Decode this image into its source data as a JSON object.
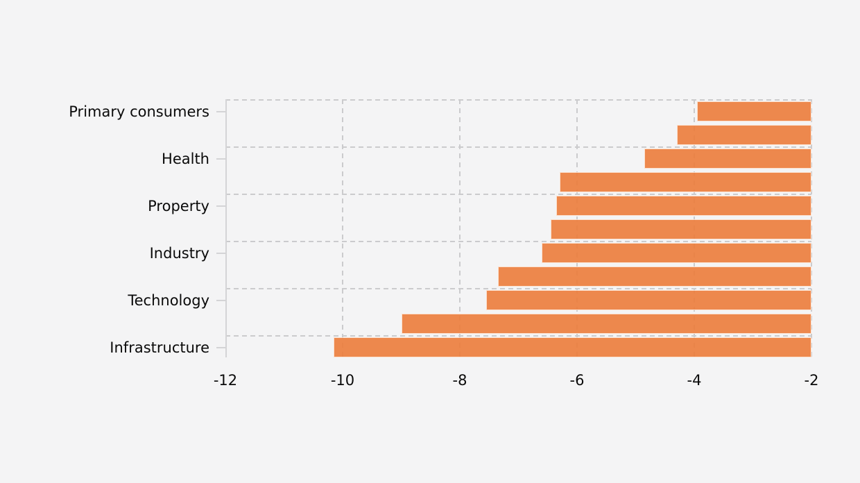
{
  "chart_data": {
    "type": "bar",
    "orientation": "horizontal",
    "title": "",
    "categories": [
      "Primary consumers",
      "",
      "Health",
      "",
      "Property",
      "",
      "Industry",
      "",
      "Technology",
      "",
      "Infrastructure"
    ],
    "values": [
      -3.95,
      -4.3,
      -4.85,
      -6.3,
      -6.35,
      -6.45,
      -6.6,
      -7.35,
      -7.55,
      -9.0,
      -10.15
    ],
    "bar_baseline": -2,
    "xlim": [
      -12,
      -2
    ],
    "x_tick_labels": [
      "-12",
      "-10",
      "-8",
      "-6",
      "-4",
      "-2"
    ],
    "x_tick_values": [
      -12,
      -10,
      -8,
      -6,
      -4,
      -2
    ],
    "v_gridline_values": [
      -10,
      -8,
      -6,
      -4,
      -2
    ],
    "h_gridline_count": 6,
    "grid_style": "dashed",
    "legend": false,
    "colors": {
      "background": "#f4f4f5",
      "bar": "rgba(236,124,59,0.9)",
      "bar_edge": "#fff8f0",
      "grid": "#cbcbcd",
      "axis": "#d4d4d6",
      "text": "#0a0a0a"
    }
  }
}
